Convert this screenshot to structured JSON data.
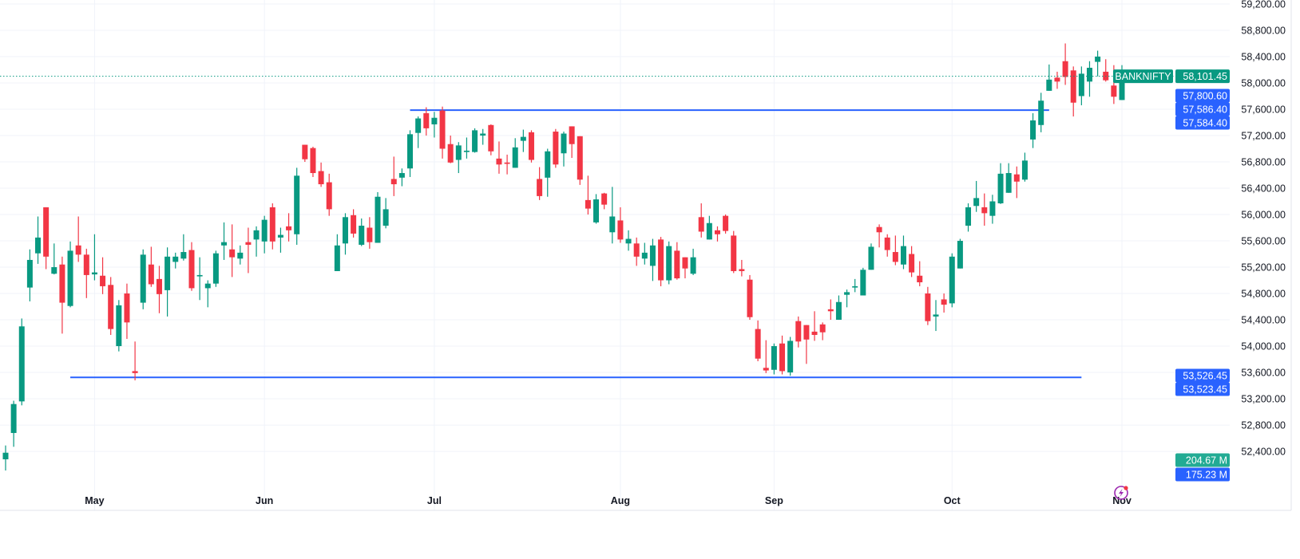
{
  "symbol": "BANKNIFTY",
  "colors": {
    "up": "#089981",
    "down": "#F23645",
    "line": "#2962FF",
    "grid": "#F0F3FA",
    "volume_badge": "#22AB94",
    "text": "#131722"
  },
  "price_badges": {
    "last": "58,101.45",
    "label_1": "57,800.60",
    "label_2": "57,586.40",
    "label_3": "57,584.40",
    "label_4": "53,526.45",
    "label_5": "53,523.45",
    "volume_1": "204.67 M",
    "volume_2": "175.23 M"
  },
  "icons": {
    "alert": "lightning-icon"
  },
  "chart_data": {
    "type": "candlestick",
    "ylim": [
      52110,
      59260
    ],
    "grid": true,
    "y_ticks": [
      {
        "value": 59200,
        "label": "59,200.00"
      },
      {
        "value": 58800,
        "label": "58,800.00"
      },
      {
        "value": 58400,
        "label": "58,400.00"
      },
      {
        "value": 58000,
        "label": "58,000.00"
      },
      {
        "value": 57600,
        "label": "57,600.00"
      },
      {
        "value": 57200,
        "label": "57,200.00"
      },
      {
        "value": 56800,
        "label": "56,800.00"
      },
      {
        "value": 56400,
        "label": "56,400.00"
      },
      {
        "value": 56000,
        "label": "56,000.00"
      },
      {
        "value": 55600,
        "label": "55,600.00"
      },
      {
        "value": 55200,
        "label": "55,200.00"
      },
      {
        "value": 54800,
        "label": "54,800.00"
      },
      {
        "value": 54400,
        "label": "54,400.00"
      },
      {
        "value": 54000,
        "label": "54,000.00"
      },
      {
        "value": 53600,
        "label": "53,600.00"
      },
      {
        "value": 53200,
        "label": "53,200.00"
      },
      {
        "value": 52800,
        "label": "52,800.00"
      },
      {
        "value": 52400,
        "label": "52,400.00"
      }
    ],
    "x_ticks": [
      {
        "label": "May",
        "index": 11
      },
      {
        "label": "Jun",
        "index": 32
      },
      {
        "label": "Jul",
        "index": 53
      },
      {
        "label": "Aug",
        "index": 76
      },
      {
        "label": "Sep",
        "index": 95
      },
      {
        "label": "Oct",
        "index": 117
      },
      {
        "label": "Nov",
        "index": 138
      }
    ],
    "last_price": 58101.45,
    "horizontal_lines": [
      {
        "price": 57585.4,
        "from_index": 50,
        "to_index": 129
      },
      {
        "price": 53524.95,
        "from_index": 8,
        "to_index": 133
      }
    ],
    "ohlc_fields": [
      "open",
      "high",
      "low",
      "close"
    ],
    "candles": [
      [
        52280,
        52490,
        52030,
        52380
      ],
      [
        52680,
        53170,
        52470,
        53120
      ],
      [
        53160,
        54420,
        53100,
        54300
      ],
      [
        54890,
        55470,
        54680,
        55310
      ],
      [
        55410,
        55970,
        55250,
        55650
      ],
      [
        56110,
        56110,
        55170,
        55360
      ],
      [
        55100,
        55560,
        55090,
        55200
      ],
      [
        55240,
        55360,
        54190,
        54660
      ],
      [
        54610,
        55590,
        54590,
        55450
      ],
      [
        55530,
        55970,
        55280,
        55390
      ],
      [
        55390,
        55480,
        54730,
        55080
      ],
      [
        55090,
        55700,
        55000,
        55120
      ],
      [
        55070,
        55350,
        54790,
        54910
      ],
      [
        54930,
        55050,
        54170,
        54260
      ],
      [
        54000,
        54700,
        53920,
        54620
      ],
      [
        54800,
        54950,
        54110,
        54360
      ],
      [
        53620,
        54070,
        53480,
        53590
      ],
      [
        54660,
        55470,
        54560,
        55390
      ],
      [
        55240,
        55510,
        54900,
        54940
      ],
      [
        55020,
        55220,
        54500,
        54790
      ],
      [
        54850,
        55500,
        54450,
        55360
      ],
      [
        55280,
        55420,
        55180,
        55360
      ],
      [
        55330,
        55700,
        55300,
        55430
      ],
      [
        55460,
        55580,
        54840,
        54880
      ],
      [
        55060,
        55350,
        54700,
        55080
      ],
      [
        54880,
        55000,
        54590,
        54950
      ],
      [
        54950,
        55450,
        54900,
        55410
      ],
      [
        55530,
        55880,
        55310,
        55580
      ],
      [
        55470,
        55850,
        55050,
        55350
      ],
      [
        55330,
        55530,
        55240,
        55420
      ],
      [
        55580,
        55800,
        55110,
        55540
      ],
      [
        55620,
        55820,
        55360,
        55760
      ],
      [
        55590,
        55980,
        55410,
        55920
      ],
      [
        56110,
        56170,
        55470,
        55590
      ],
      [
        55650,
        55800,
        55420,
        55690
      ],
      [
        55820,
        56020,
        55590,
        55760
      ],
      [
        55700,
        56710,
        55540,
        56590
      ],
      [
        57060,
        57060,
        56800,
        56840
      ],
      [
        57010,
        57030,
        56570,
        56630
      ],
      [
        56660,
        56790,
        56420,
        56460
      ],
      [
        56490,
        56620,
        55980,
        56080
      ],
      [
        55140,
        55700,
        55140,
        55530
      ],
      [
        55560,
        56020,
        55390,
        55960
      ],
      [
        55990,
        56080,
        55650,
        55710
      ],
      [
        55540,
        55940,
        55520,
        55830
      ],
      [
        55800,
        55960,
        55480,
        55580
      ],
      [
        55570,
        56340,
        55570,
        56270
      ],
      [
        55830,
        56250,
        55790,
        56080
      ],
      [
        56540,
        56880,
        56280,
        56460
      ],
      [
        56560,
        56700,
        56430,
        56630
      ],
      [
        56700,
        57280,
        56570,
        57220
      ],
      [
        57240,
        57490,
        57010,
        57460
      ],
      [
        57540,
        57630,
        57200,
        57310
      ],
      [
        57370,
        57560,
        57170,
        57470
      ],
      [
        57580,
        57640,
        56850,
        57000
      ],
      [
        57070,
        57200,
        56780,
        56790
      ],
      [
        56830,
        57100,
        56630,
        57050
      ],
      [
        56950,
        57170,
        56850,
        56970
      ],
      [
        56950,
        57310,
        56940,
        57280
      ],
      [
        57200,
        57300,
        57060,
        57230
      ],
      [
        57360,
        57370,
        56900,
        56960
      ],
      [
        56850,
        57110,
        56620,
        56760
      ],
      [
        56790,
        56910,
        56610,
        56770
      ],
      [
        56710,
        57160,
        56710,
        57020
      ],
      [
        57120,
        57290,
        56950,
        57180
      ],
      [
        57250,
        57280,
        56790,
        56830
      ],
      [
        56540,
        56720,
        56220,
        56280
      ],
      [
        56560,
        57000,
        56270,
        56960
      ],
      [
        57260,
        57300,
        56710,
        56760
      ],
      [
        56930,
        57260,
        56730,
        57230
      ],
      [
        57340,
        57340,
        56860,
        57070
      ],
      [
        57190,
        57190,
        56450,
        56530
      ],
      [
        56220,
        56590,
        56000,
        56090
      ],
      [
        55880,
        56310,
        55860,
        56230
      ],
      [
        56320,
        56330,
        56080,
        56150
      ],
      [
        55730,
        56420,
        55560,
        55970
      ],
      [
        55910,
        56110,
        55570,
        55620
      ],
      [
        55560,
        55760,
        55450,
        55630
      ],
      [
        55560,
        55650,
        55220,
        55360
      ],
      [
        55330,
        55570,
        55240,
        55420
      ],
      [
        55220,
        55630,
        54990,
        55530
      ],
      [
        55620,
        55660,
        54910,
        55000
      ],
      [
        55000,
        55590,
        54940,
        55520
      ],
      [
        55450,
        55580,
        55010,
        55030
      ],
      [
        55350,
        55350,
        55030,
        55180
      ],
      [
        55100,
        55480,
        55080,
        55350
      ],
      [
        55960,
        56170,
        55650,
        55740
      ],
      [
        55620,
        55980,
        55620,
        55870
      ],
      [
        55760,
        55820,
        55590,
        55700
      ],
      [
        55980,
        56000,
        55710,
        55750
      ],
      [
        55680,
        55750,
        55110,
        55140
      ],
      [
        55170,
        55310,
        55060,
        55140
      ],
      [
        55010,
        55080,
        54400,
        54440
      ],
      [
        54260,
        54390,
        53770,
        53810
      ],
      [
        53670,
        54090,
        53590,
        53630
      ],
      [
        53640,
        54040,
        53570,
        54000
      ],
      [
        54040,
        54160,
        53570,
        53620
      ],
      [
        53600,
        54140,
        53550,
        54080
      ],
      [
        54380,
        54450,
        53980,
        54070
      ],
      [
        54320,
        54320,
        53730,
        54100
      ],
      [
        54220,
        54530,
        54080,
        54170
      ],
      [
        54330,
        54360,
        54090,
        54210
      ],
      [
        54560,
        54710,
        54400,
        54530
      ],
      [
        54400,
        54770,
        54400,
        54670
      ],
      [
        54780,
        54860,
        54590,
        54820
      ],
      [
        54890,
        55020,
        54820,
        54910
      ],
      [
        54770,
        55190,
        54770,
        55160
      ],
      [
        55160,
        55560,
        55160,
        55510
      ],
      [
        55810,
        55850,
        55500,
        55730
      ],
      [
        55650,
        55700,
        55360,
        55460
      ],
      [
        55430,
        55680,
        55230,
        55280
      ],
      [
        55240,
        55680,
        55170,
        55520
      ],
      [
        55400,
        55520,
        55050,
        55120
      ],
      [
        55070,
        55290,
        54910,
        54970
      ],
      [
        54800,
        54900,
        54320,
        54380
      ],
      [
        54450,
        54700,
        54230,
        54480
      ],
      [
        54710,
        54800,
        54510,
        54630
      ],
      [
        54650,
        55410,
        54590,
        55360
      ],
      [
        55180,
        55630,
        55180,
        55600
      ],
      [
        55830,
        56170,
        55740,
        56110
      ],
      [
        56130,
        56510,
        56040,
        56250
      ],
      [
        56110,
        56320,
        55830,
        56020
      ],
      [
        55980,
        56300,
        55860,
        56200
      ],
      [
        56170,
        56780,
        56160,
        56620
      ],
      [
        56330,
        56780,
        56330,
        56630
      ],
      [
        56610,
        56730,
        56250,
        56500
      ],
      [
        56530,
        56940,
        56500,
        56820
      ],
      [
        57140,
        57540,
        57010,
        57430
      ],
      [
        57360,
        57850,
        57250,
        57730
      ],
      [
        57880,
        58280,
        57880,
        58050
      ],
      [
        58080,
        58170,
        57910,
        58020
      ],
      [
        58330,
        58600,
        57970,
        58090
      ],
      [
        58190,
        58250,
        57490,
        57700
      ],
      [
        57800,
        58250,
        57660,
        58140
      ],
      [
        58020,
        58330,
        57790,
        58230
      ],
      [
        58320,
        58490,
        58100,
        58400
      ],
      [
        58170,
        58360,
        58020,
        58040
      ],
      [
        57960,
        58270,
        57680,
        57790
      ],
      [
        57740,
        58270,
        57740,
        58101.45
      ]
    ]
  }
}
